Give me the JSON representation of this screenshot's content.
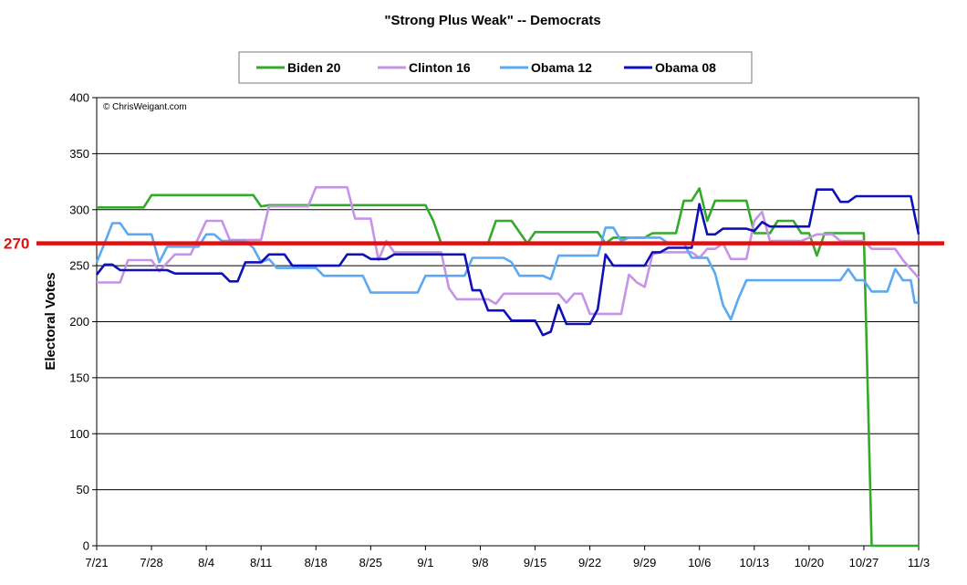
{
  "chart_data": {
    "type": "line",
    "title": "\"Strong Plus Weak\" -- Democrats",
    "ylabel": "Electoral Votes",
    "xlabel": "",
    "copyright": "© ChrisWeigant.com",
    "ylim": [
      0,
      400
    ],
    "yticks": [
      "0",
      "50",
      "100",
      "150",
      "200",
      "250",
      "300",
      "350",
      "400"
    ],
    "xlim": [
      0,
      105
    ],
    "xticks": [
      {
        "x": 0,
        "label": "7/21"
      },
      {
        "x": 7,
        "label": "7/28"
      },
      {
        "x": 14,
        "label": "8/4"
      },
      {
        "x": 21,
        "label": "8/11"
      },
      {
        "x": 28,
        "label": "8/18"
      },
      {
        "x": 35,
        "label": "8/25"
      },
      {
        "x": 42,
        "label": "9/1"
      },
      {
        "x": 49,
        "label": "9/8"
      },
      {
        "x": 56,
        "label": "9/15"
      },
      {
        "x": 63,
        "label": "9/22"
      },
      {
        "x": 70,
        "label": "9/29"
      },
      {
        "x": 77,
        "label": "10/6"
      },
      {
        "x": 84,
        "label": "10/13"
      },
      {
        "x": 91,
        "label": "10/20"
      },
      {
        "x": 98,
        "label": "10/27"
      },
      {
        "x": 105,
        "label": "11/3"
      }
    ],
    "grid": true,
    "legend_position": "top",
    "reference_line": {
      "value": 270,
      "label": "270",
      "color": "#dd1111"
    },
    "series": [
      {
        "name": "Biden 20",
        "color": "#33aa2a",
        "points": [
          [
            0,
            302
          ],
          [
            6,
            302
          ],
          [
            7,
            313
          ],
          [
            20,
            313
          ],
          [
            21,
            303
          ],
          [
            22,
            304
          ],
          [
            42,
            304
          ],
          [
            43,
            290
          ],
          [
            44,
            270
          ],
          [
            50,
            270
          ],
          [
            51,
            290
          ],
          [
            53,
            290
          ],
          [
            55,
            270
          ],
          [
            56,
            280
          ],
          [
            64,
            280
          ],
          [
            65,
            270
          ],
          [
            66,
            275
          ],
          [
            70,
            275
          ],
          [
            71,
            279
          ],
          [
            73,
            279
          ],
          [
            74,
            279
          ],
          [
            75,
            308
          ],
          [
            76,
            308
          ],
          [
            77,
            319
          ],
          [
            78,
            290
          ],
          [
            79,
            308
          ],
          [
            83,
            308
          ],
          [
            84,
            279
          ],
          [
            86,
            279
          ],
          [
            87,
            290
          ],
          [
            89,
            290
          ],
          [
            90,
            279
          ],
          [
            91,
            279
          ],
          [
            92,
            259
          ],
          [
            93,
            279
          ],
          [
            98,
            279
          ],
          [
            99,
            0
          ],
          [
            105,
            0
          ]
        ]
      },
      {
        "name": "Clinton 16",
        "color": "#c693e6",
        "points": [
          [
            0,
            235
          ],
          [
            3,
            235
          ],
          [
            4,
            255
          ],
          [
            7,
            255
          ],
          [
            8,
            245
          ],
          [
            10,
            260
          ],
          [
            12,
            260
          ],
          [
            13,
            275
          ],
          [
            14,
            290
          ],
          [
            16,
            290
          ],
          [
            17,
            273
          ],
          [
            21,
            273
          ],
          [
            22,
            303
          ],
          [
            27,
            303
          ],
          [
            28,
            320
          ],
          [
            32,
            320
          ],
          [
            33,
            292
          ],
          [
            35,
            292
          ],
          [
            36,
            255
          ],
          [
            37,
            272
          ],
          [
            38,
            262
          ],
          [
            44,
            262
          ],
          [
            45,
            230
          ],
          [
            46,
            220
          ],
          [
            50,
            220
          ],
          [
            51,
            216
          ],
          [
            52,
            225
          ],
          [
            59,
            225
          ],
          [
            60,
            217
          ],
          [
            61,
            225
          ],
          [
            62,
            225
          ],
          [
            63,
            207
          ],
          [
            64,
            207
          ],
          [
            67,
            207
          ],
          [
            68,
            242
          ],
          [
            69,
            235
          ],
          [
            70,
            231
          ],
          [
            71,
            260
          ],
          [
            72,
            262
          ],
          [
            73,
            262
          ],
          [
            76,
            262
          ],
          [
            77,
            257
          ],
          [
            78,
            265
          ],
          [
            79,
            265
          ],
          [
            80,
            270
          ],
          [
            81,
            256
          ],
          [
            83,
            256
          ],
          [
            84,
            290
          ],
          [
            85,
            298
          ],
          [
            86,
            272
          ],
          [
            90,
            272
          ],
          [
            92,
            278
          ],
          [
            94,
            278
          ],
          [
            95,
            272
          ],
          [
            98,
            272
          ],
          [
            99,
            265
          ],
          [
            102,
            265
          ],
          [
            103,
            255
          ],
          [
            104,
            247
          ],
          [
            105,
            239
          ]
        ]
      },
      {
        "name": "Obama 12",
        "color": "#5ba9f2",
        "points": [
          [
            0,
            253
          ],
          [
            1,
            270
          ],
          [
            2,
            288
          ],
          [
            3,
            288
          ],
          [
            4,
            278
          ],
          [
            7,
            278
          ],
          [
            8,
            253
          ],
          [
            9,
            267
          ],
          [
            13,
            267
          ],
          [
            14,
            278
          ],
          [
            15,
            278
          ],
          [
            16,
            272
          ],
          [
            19,
            272
          ],
          [
            20,
            266
          ],
          [
            21,
            253
          ],
          [
            22,
            256
          ],
          [
            23,
            248
          ],
          [
            28,
            248
          ],
          [
            29,
            241
          ],
          [
            34,
            241
          ],
          [
            35,
            226
          ],
          [
            41,
            226
          ],
          [
            42,
            241
          ],
          [
            47,
            241
          ],
          [
            48,
            257
          ],
          [
            52,
            257
          ],
          [
            53,
            253
          ],
          [
            54,
            241
          ],
          [
            57,
            241
          ],
          [
            58,
            238
          ],
          [
            59,
            259
          ],
          [
            64,
            259
          ],
          [
            65,
            284
          ],
          [
            66,
            284
          ],
          [
            67,
            272
          ],
          [
            68,
            275
          ],
          [
            72,
            275
          ],
          [
            73,
            270
          ],
          [
            75,
            270
          ],
          [
            76,
            257
          ],
          [
            78,
            257
          ],
          [
            79,
            243
          ],
          [
            80,
            215
          ],
          [
            81,
            202
          ],
          [
            82,
            221
          ],
          [
            83,
            237
          ],
          [
            89,
            237
          ],
          [
            95,
            237
          ],
          [
            96,
            247
          ],
          [
            97,
            237
          ],
          [
            98,
            237
          ],
          [
            99,
            227
          ],
          [
            101,
            227
          ],
          [
            102,
            247
          ],
          [
            103,
            237
          ],
          [
            104,
            237
          ],
          [
            104.5,
            217
          ],
          [
            105,
            217
          ]
        ]
      },
      {
        "name": "Obama 08",
        "color": "#1010b8",
        "points": [
          [
            0,
            242
          ],
          [
            1,
            251
          ],
          [
            2,
            251
          ],
          [
            3,
            246
          ],
          [
            9,
            246
          ],
          [
            10,
            243
          ],
          [
            16,
            243
          ],
          [
            17,
            236
          ],
          [
            18,
            236
          ],
          [
            19,
            253
          ],
          [
            21,
            253
          ],
          [
            22,
            260
          ],
          [
            24,
            260
          ],
          [
            25,
            250
          ],
          [
            31,
            250
          ],
          [
            32,
            260
          ],
          [
            34,
            260
          ],
          [
            35,
            256
          ],
          [
            37,
            256
          ],
          [
            38,
            260
          ],
          [
            47,
            260
          ],
          [
            48,
            228
          ],
          [
            49,
            228
          ],
          [
            50,
            210
          ],
          [
            52,
            210
          ],
          [
            53,
            201
          ],
          [
            56,
            201
          ],
          [
            57,
            188
          ],
          [
            58,
            191
          ],
          [
            59,
            215
          ],
          [
            60,
            198
          ],
          [
            63,
            198
          ],
          [
            64,
            211
          ],
          [
            65,
            260
          ],
          [
            66,
            250
          ],
          [
            69,
            250
          ],
          [
            70,
            250
          ],
          [
            71,
            262
          ],
          [
            72,
            262
          ],
          [
            73,
            266
          ],
          [
            76,
            266
          ],
          [
            77,
            305
          ],
          [
            78,
            278
          ],
          [
            79,
            278
          ],
          [
            80,
            283
          ],
          [
            83,
            283
          ],
          [
            84,
            281
          ],
          [
            85,
            289
          ],
          [
            86,
            285
          ],
          [
            91,
            285
          ],
          [
            92,
            318
          ],
          [
            94,
            318
          ],
          [
            95,
            307
          ],
          [
            96,
            307
          ],
          [
            97,
            312
          ],
          [
            103,
            312
          ],
          [
            104,
            312
          ],
          [
            105,
            278
          ]
        ]
      }
    ]
  }
}
